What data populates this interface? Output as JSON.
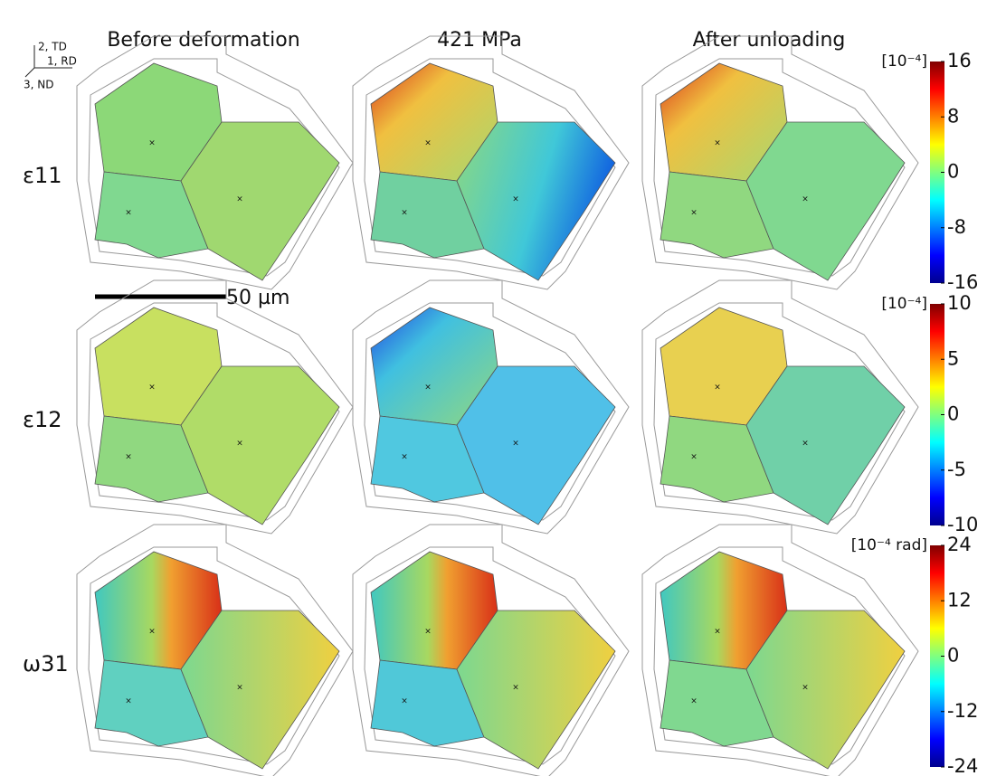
{
  "axes": {
    "y": "2, TD",
    "x": "1, RD",
    "z": "3, ND"
  },
  "columns": [
    "Before deformation",
    "421 MPa",
    "After unloading"
  ],
  "rows": [
    {
      "label": "ε11",
      "unit": "[10⁻⁴]",
      "ticks": [
        16,
        8,
        0,
        -8,
        -16
      ]
    },
    {
      "label": "ε12",
      "unit": "[10⁻⁴]",
      "ticks": [
        10,
        5,
        0,
        -5,
        -10
      ]
    },
    {
      "label": "ω31",
      "unit": "[10⁻⁴ rad]",
      "ticks": [
        24,
        12,
        0,
        -12,
        -24
      ]
    }
  ],
  "scale_bar": "50 µm"
}
